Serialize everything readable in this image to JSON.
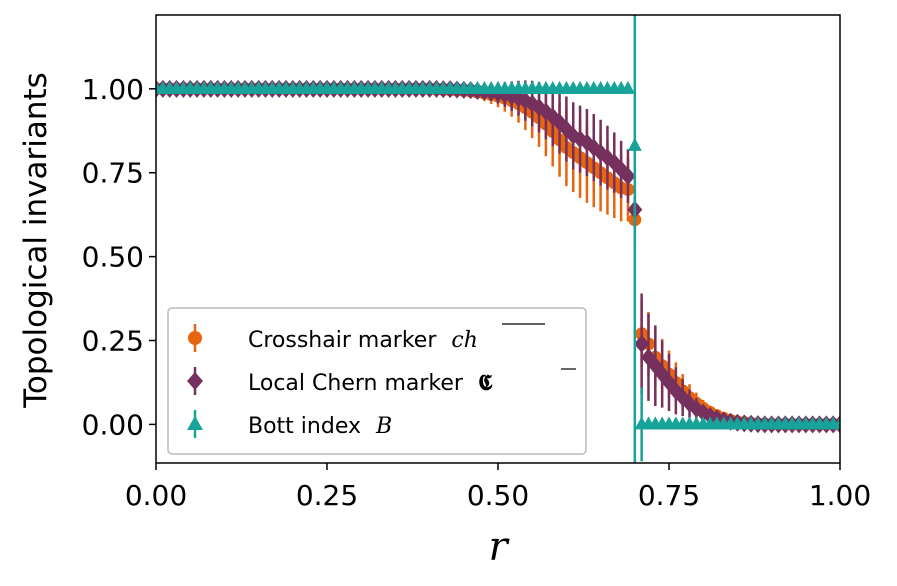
{
  "chart_data": {
    "type": "scatter",
    "xlabel": "r",
    "ylabel": "Topological invariants",
    "xlim": [
      0.0,
      1.0
    ],
    "ylim": [
      -0.115,
      1.22
    ],
    "xticks": [
      "0.00",
      "0.25",
      "0.50",
      "0.75",
      "1.00"
    ],
    "yticks": [
      "0.00",
      "0.25",
      "0.50",
      "0.75",
      "1.00"
    ],
    "xtick_values": [
      0.0,
      0.25,
      0.5,
      0.75,
      1.0
    ],
    "ytick_values": [
      0.0,
      0.25,
      0.5,
      0.75,
      1.0
    ],
    "legend_position": "lower-left",
    "series": [
      {
        "name": "Crosshair marker",
        "symbol": "ch",
        "marker": "circle",
        "color": "#e8650f",
        "x": [
          0.0,
          0.01,
          0.02,
          0.03,
          0.04,
          0.05,
          0.06,
          0.07,
          0.08,
          0.09,
          0.1,
          0.11,
          0.12,
          0.13,
          0.14,
          0.15,
          0.16,
          0.17,
          0.18,
          0.19,
          0.2,
          0.21,
          0.22,
          0.23,
          0.24,
          0.25,
          0.26,
          0.27,
          0.28,
          0.29,
          0.3,
          0.31,
          0.32,
          0.33,
          0.34,
          0.35,
          0.36,
          0.37,
          0.38,
          0.39,
          0.4,
          0.41,
          0.42,
          0.43,
          0.44,
          0.45,
          0.46,
          0.47,
          0.48,
          0.49,
          0.5,
          0.51,
          0.52,
          0.53,
          0.54,
          0.55,
          0.56,
          0.57,
          0.58,
          0.59,
          0.6,
          0.61,
          0.62,
          0.63,
          0.64,
          0.65,
          0.66,
          0.67,
          0.68,
          0.69,
          0.7,
          0.71,
          0.72,
          0.73,
          0.74,
          0.75,
          0.76,
          0.77,
          0.78,
          0.79,
          0.8,
          0.81,
          0.82,
          0.83,
          0.84,
          0.85,
          0.86,
          0.87,
          0.88,
          0.89,
          0.9,
          0.91,
          0.92,
          0.93,
          0.94,
          0.95,
          0.96,
          0.97,
          0.98,
          0.99,
          1.0
        ],
        "y": [
          1.0,
          1.0,
          1.0,
          1.0,
          1.0,
          1.0,
          1.0,
          1.0,
          1.0,
          1.0,
          1.0,
          1.0,
          1.0,
          1.0,
          1.0,
          1.0,
          1.0,
          1.0,
          1.0,
          1.0,
          1.0,
          1.0,
          1.0,
          1.0,
          1.0,
          1.0,
          1.0,
          1.0,
          1.0,
          1.0,
          1.0,
          1.0,
          1.0,
          1.0,
          1.0,
          1.0,
          1.0,
          1.0,
          1.0,
          1.0,
          1.0,
          0.999,
          0.998,
          0.997,
          0.996,
          0.995,
          0.993,
          0.99,
          0.987,
          0.983,
          0.978,
          0.972,
          0.965,
          0.956,
          0.944,
          0.93,
          0.914,
          0.895,
          0.873,
          0.848,
          0.825,
          0.81,
          0.795,
          0.78,
          0.765,
          0.75,
          0.735,
          0.72,
          0.705,
          0.7,
          0.61,
          0.27,
          0.24,
          0.2,
          0.175,
          0.15,
          0.125,
          0.1,
          0.08,
          0.063,
          0.048,
          0.036,
          0.026,
          0.018,
          0.012,
          0.008,
          0.005,
          0.003,
          0.002,
          0.001,
          0.0,
          0.0,
          0.0,
          0.0,
          0.0,
          0.0,
          0.0,
          0.0,
          0.0,
          0.0,
          0.0
        ],
        "err": [
          0.01,
          0.01,
          0.01,
          0.01,
          0.01,
          0.01,
          0.01,
          0.01,
          0.01,
          0.01,
          0.01,
          0.01,
          0.01,
          0.01,
          0.01,
          0.01,
          0.01,
          0.01,
          0.01,
          0.01,
          0.01,
          0.01,
          0.01,
          0.01,
          0.01,
          0.01,
          0.01,
          0.01,
          0.01,
          0.01,
          0.01,
          0.01,
          0.01,
          0.01,
          0.01,
          0.01,
          0.01,
          0.01,
          0.01,
          0.01,
          0.01,
          0.01,
          0.01,
          0.012,
          0.014,
          0.016,
          0.018,
          0.02,
          0.024,
          0.028,
          0.033,
          0.04,
          0.048,
          0.057,
          0.067,
          0.077,
          0.087,
          0.096,
          0.104,
          0.11,
          0.115,
          0.118,
          0.12,
          0.12,
          0.118,
          0.115,
          0.11,
          0.105,
          0.1,
          0.095,
          0.09,
          0.1,
          0.095,
          0.09,
          0.08,
          0.07,
          0.06,
          0.05,
          0.04,
          0.032,
          0.025,
          0.02,
          0.015,
          0.012,
          0.01,
          0.008,
          0.007,
          0.006,
          0.005,
          0.005,
          0.005,
          0.005,
          0.005,
          0.005,
          0.005,
          0.005,
          0.005,
          0.005,
          0.005,
          0.005,
          0.005
        ]
      },
      {
        "name": "Local Chern marker",
        "symbol": "C",
        "marker": "diamond",
        "color": "#75305e",
        "x": [
          0.0,
          0.01,
          0.02,
          0.03,
          0.04,
          0.05,
          0.06,
          0.07,
          0.08,
          0.09,
          0.1,
          0.11,
          0.12,
          0.13,
          0.14,
          0.15,
          0.16,
          0.17,
          0.18,
          0.19,
          0.2,
          0.21,
          0.22,
          0.23,
          0.24,
          0.25,
          0.26,
          0.27,
          0.28,
          0.29,
          0.3,
          0.31,
          0.32,
          0.33,
          0.34,
          0.35,
          0.36,
          0.37,
          0.38,
          0.39,
          0.4,
          0.41,
          0.42,
          0.43,
          0.44,
          0.45,
          0.46,
          0.47,
          0.48,
          0.49,
          0.5,
          0.51,
          0.52,
          0.53,
          0.54,
          0.55,
          0.56,
          0.57,
          0.58,
          0.59,
          0.6,
          0.61,
          0.62,
          0.63,
          0.64,
          0.65,
          0.66,
          0.67,
          0.68,
          0.69,
          0.7,
          0.71,
          0.72,
          0.73,
          0.74,
          0.75,
          0.76,
          0.77,
          0.78,
          0.79,
          0.8,
          0.81,
          0.82,
          0.83,
          0.84,
          0.85,
          0.86,
          0.87,
          0.88,
          0.89,
          0.9,
          0.91,
          0.92,
          0.93,
          0.94,
          0.95,
          0.96,
          0.97,
          0.98,
          0.99,
          1.0
        ],
        "y": [
          1.0,
          1.0,
          1.0,
          1.0,
          1.0,
          1.0,
          1.0,
          1.0,
          1.0,
          1.0,
          1.0,
          1.0,
          1.0,
          1.0,
          1.0,
          1.0,
          1.0,
          1.0,
          1.0,
          1.0,
          1.0,
          1.0,
          1.0,
          1.0,
          1.0,
          1.0,
          1.0,
          1.0,
          1.0,
          1.0,
          1.0,
          1.0,
          1.0,
          1.0,
          1.0,
          1.0,
          1.0,
          1.0,
          1.0,
          1.0,
          1.0,
          1.0,
          0.999,
          0.999,
          0.998,
          0.997,
          0.996,
          0.994,
          0.992,
          0.99,
          0.987,
          0.983,
          0.978,
          0.972,
          0.965,
          0.956,
          0.945,
          0.932,
          0.917,
          0.9,
          0.88,
          0.86,
          0.85,
          0.84,
          0.825,
          0.81,
          0.795,
          0.78,
          0.76,
          0.74,
          0.64,
          0.24,
          0.2,
          0.175,
          0.15,
          0.125,
          0.1,
          0.08,
          0.062,
          0.047,
          0.035,
          0.025,
          0.018,
          0.012,
          0.008,
          0.005,
          0.003,
          0.002,
          0.001,
          0.0,
          0.0,
          0.0,
          0.0,
          0.0,
          0.0,
          0.0,
          0.0,
          0.0,
          0.0,
          0.0,
          0.0
        ],
        "err": [
          0.01,
          0.01,
          0.01,
          0.01,
          0.01,
          0.01,
          0.01,
          0.01,
          0.01,
          0.01,
          0.01,
          0.01,
          0.01,
          0.01,
          0.01,
          0.01,
          0.01,
          0.01,
          0.01,
          0.01,
          0.01,
          0.01,
          0.01,
          0.01,
          0.01,
          0.01,
          0.01,
          0.01,
          0.01,
          0.01,
          0.01,
          0.01,
          0.01,
          0.01,
          0.01,
          0.01,
          0.01,
          0.01,
          0.01,
          0.01,
          0.01,
          0.01,
          0.01,
          0.011,
          0.012,
          0.013,
          0.015,
          0.018,
          0.022,
          0.026,
          0.031,
          0.037,
          0.044,
          0.052,
          0.06,
          0.068,
          0.075,
          0.082,
          0.088,
          0.093,
          0.097,
          0.1,
          0.1,
          0.1,
          0.1,
          0.098,
          0.095,
          0.09,
          0.085,
          0.08,
          0.06,
          0.15,
          0.13,
          0.12,
          0.1,
          0.085,
          0.07,
          0.055,
          0.042,
          0.032,
          0.024,
          0.018,
          0.013,
          0.01,
          0.008,
          0.006,
          0.005,
          0.005,
          0.005,
          0.005,
          0.005,
          0.005,
          0.005,
          0.005,
          0.005,
          0.005,
          0.005,
          0.005,
          0.005,
          0.005,
          0.005
        ]
      },
      {
        "name": "Bott index",
        "symbol": "B",
        "marker": "triangle",
        "color": "#17a39a",
        "x": [
          0.0,
          0.01,
          0.02,
          0.03,
          0.04,
          0.05,
          0.06,
          0.07,
          0.08,
          0.09,
          0.1,
          0.11,
          0.12,
          0.13,
          0.14,
          0.15,
          0.16,
          0.17,
          0.18,
          0.19,
          0.2,
          0.21,
          0.22,
          0.23,
          0.24,
          0.25,
          0.26,
          0.27,
          0.28,
          0.29,
          0.3,
          0.31,
          0.32,
          0.33,
          0.34,
          0.35,
          0.36,
          0.37,
          0.38,
          0.39,
          0.4,
          0.41,
          0.42,
          0.43,
          0.44,
          0.45,
          0.46,
          0.47,
          0.48,
          0.49,
          0.5,
          0.51,
          0.52,
          0.53,
          0.54,
          0.55,
          0.56,
          0.57,
          0.58,
          0.59,
          0.6,
          0.61,
          0.62,
          0.63,
          0.64,
          0.65,
          0.66,
          0.67,
          0.68,
          0.69,
          0.7,
          0.71,
          0.72,
          0.73,
          0.74,
          0.75,
          0.76,
          0.77,
          0.78,
          0.79,
          0.8,
          0.81,
          0.82,
          0.83,
          0.84,
          0.85,
          0.86,
          0.87,
          0.88,
          0.89,
          0.9,
          0.91,
          0.92,
          0.93,
          0.94,
          0.95,
          0.96,
          0.97,
          0.98,
          0.99,
          1.0
        ],
        "y": [
          1,
          1,
          1,
          1,
          1,
          1,
          1,
          1,
          1,
          1,
          1,
          1,
          1,
          1,
          1,
          1,
          1,
          1,
          1,
          1,
          1,
          1,
          1,
          1,
          1,
          1,
          1,
          1,
          1,
          1,
          1,
          1,
          1,
          1,
          1,
          1,
          1,
          1,
          1,
          1,
          1,
          1,
          1,
          1,
          1,
          1,
          1,
          1,
          1,
          1,
          1,
          1,
          1,
          1,
          1,
          1,
          1,
          1,
          1,
          1,
          1,
          1,
          1,
          1,
          1,
          1,
          1,
          1,
          1,
          1,
          0.83,
          0.0,
          0,
          0,
          0,
          0,
          0,
          0,
          0,
          0,
          0,
          0,
          0,
          0,
          0,
          0,
          0,
          0,
          0,
          0,
          0,
          0,
          0,
          0,
          0,
          0,
          0,
          0,
          0,
          0,
          0
        ],
        "err": [
          0,
          0,
          0,
          0,
          0,
          0,
          0,
          0,
          0,
          0,
          0,
          0,
          0,
          0,
          0,
          0,
          0,
          0,
          0,
          0,
          0,
          0,
          0,
          0,
          0,
          0,
          0,
          0,
          0,
          0,
          0,
          0,
          0,
          0,
          0,
          0,
          0,
          0,
          0,
          0,
          0,
          0,
          0,
          0,
          0,
          0,
          0,
          0,
          0,
          0,
          0,
          0,
          0,
          0,
          0,
          0,
          0,
          0,
          0,
          0,
          0,
          0,
          0,
          0,
          0,
          0,
          0,
          0,
          0,
          0,
          1.2,
          0.11,
          0,
          0,
          0,
          0,
          0,
          0,
          0,
          0,
          0,
          0,
          0,
          0,
          0,
          0,
          0,
          0,
          0,
          0,
          0,
          0,
          0,
          0,
          0,
          0,
          0,
          0,
          0,
          0,
          0
        ]
      }
    ]
  },
  "legend": {
    "items": [
      {
        "label": "Crosshair marker",
        "math": "ch"
      },
      {
        "label": "Local Chern marker",
        "math": "𝕮"
      },
      {
        "label": "Bott index",
        "math": "B"
      }
    ]
  }
}
